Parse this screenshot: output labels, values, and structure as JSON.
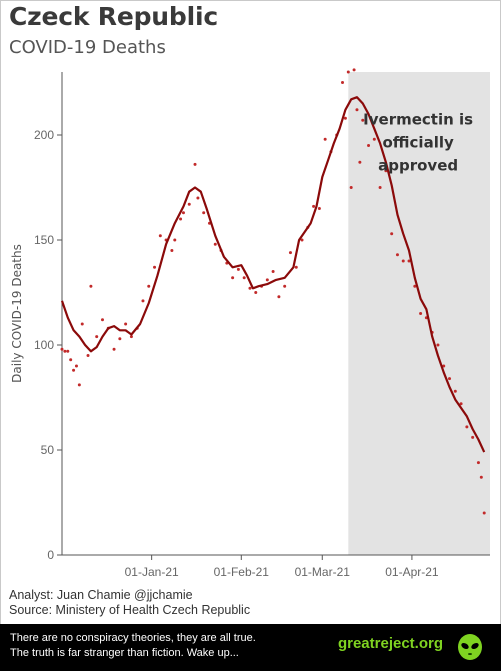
{
  "title": "Czeck Republic",
  "subtitle": "COVID-19 Deaths",
  "analyst": "Analyst: Juan Chamie @jjchamie",
  "source": "Source: Ministery of Health Czech Republic",
  "footer": {
    "line1": "There are no conspiracy theories, they are all true.",
    "line2": "The truth is far stranger than fiction. Wake up...",
    "site": "greatreject.org",
    "icon": "alien-icon"
  },
  "colors": {
    "line": "#8b0a0a",
    "points": "#c22a2a",
    "shade": "#e3e3e3",
    "axis": "#555555",
    "footer_bg": "#000000",
    "site": "#7fd321"
  },
  "chart_data": {
    "type": "line",
    "ylabel": "Daily COVID-19 Deaths",
    "xlabel": "",
    "ylim": [
      0,
      230
    ],
    "yticks": [
      0,
      50,
      100,
      150,
      200
    ],
    "xrange": [
      "2020-12-01",
      "2021-04-28"
    ],
    "xticks": [
      {
        "date": "2021-01-01",
        "label": "01-Jan-21"
      },
      {
        "date": "2021-02-01",
        "label": "01-Feb-21"
      },
      {
        "date": "2021-03-01",
        "label": "01-Mar-21"
      },
      {
        "date": "2021-04-01",
        "label": "01-Apr-21"
      }
    ],
    "shaded_region": {
      "start": "2021-03-10",
      "end": "2021-04-28"
    },
    "annotation": {
      "lines": [
        "Ivermectin is",
        "officially",
        "approved"
      ],
      "date": "2021-03-30",
      "y": 205
    },
    "series": [
      {
        "style": "line",
        "points": [
          [
            "2020-12-01",
            121
          ],
          [
            "2020-12-03",
            113
          ],
          [
            "2020-12-05",
            107
          ],
          [
            "2020-12-07",
            104
          ],
          [
            "2020-12-09",
            100
          ],
          [
            "2020-12-11",
            97
          ],
          [
            "2020-12-13",
            99
          ],
          [
            "2020-12-15",
            104
          ],
          [
            "2020-12-17",
            108
          ],
          [
            "2020-12-19",
            109
          ],
          [
            "2020-12-21",
            107
          ],
          [
            "2020-12-23",
            107
          ],
          [
            "2020-12-25",
            105
          ],
          [
            "2020-12-28",
            110
          ],
          [
            "2020-12-31",
            120
          ],
          [
            "2021-01-03",
            133
          ],
          [
            "2021-01-06",
            148
          ],
          [
            "2021-01-09",
            158
          ],
          [
            "2021-01-12",
            166
          ],
          [
            "2021-01-14",
            173
          ],
          [
            "2021-01-16",
            175
          ],
          [
            "2021-01-18",
            173
          ],
          [
            "2021-01-20",
            165
          ],
          [
            "2021-01-23",
            152
          ],
          [
            "2021-01-26",
            142
          ],
          [
            "2021-01-29",
            137
          ],
          [
            "2021-02-01",
            138
          ],
          [
            "2021-02-03",
            133
          ],
          [
            "2021-02-05",
            127
          ],
          [
            "2021-02-07",
            128
          ],
          [
            "2021-02-10",
            129
          ],
          [
            "2021-02-13",
            131
          ],
          [
            "2021-02-16",
            132
          ],
          [
            "2021-02-19",
            137
          ],
          [
            "2021-02-21",
            150
          ],
          [
            "2021-02-23",
            154
          ],
          [
            "2021-02-25",
            158
          ],
          [
            "2021-02-27",
            166
          ],
          [
            "2021-03-01",
            180
          ],
          [
            "2021-03-03",
            188
          ],
          [
            "2021-03-05",
            196
          ],
          [
            "2021-03-07",
            203
          ],
          [
            "2021-03-09",
            212
          ],
          [
            "2021-03-11",
            217
          ],
          [
            "2021-03-13",
            218
          ],
          [
            "2021-03-15",
            215
          ],
          [
            "2021-03-17",
            210
          ],
          [
            "2021-03-19",
            203
          ],
          [
            "2021-03-21",
            196
          ],
          [
            "2021-03-23",
            187
          ],
          [
            "2021-03-25",
            176
          ],
          [
            "2021-03-27",
            162
          ],
          [
            "2021-03-29",
            153
          ],
          [
            "2021-03-31",
            145
          ],
          [
            "2021-04-02",
            132
          ],
          [
            "2021-04-04",
            122
          ],
          [
            "2021-04-06",
            117
          ],
          [
            "2021-04-08",
            104
          ],
          [
            "2021-04-10",
            95
          ],
          [
            "2021-04-12",
            87
          ],
          [
            "2021-04-14",
            80
          ],
          [
            "2021-04-16",
            74
          ],
          [
            "2021-04-18",
            70
          ],
          [
            "2021-04-20",
            66
          ],
          [
            "2021-04-22",
            60
          ],
          [
            "2021-04-24",
            55
          ],
          [
            "2021-04-26",
            49
          ]
        ]
      },
      {
        "style": "points",
        "points": [
          [
            "2020-12-01",
            98
          ],
          [
            "2020-12-02",
            97
          ],
          [
            "2020-12-03",
            97
          ],
          [
            "2020-12-04",
            93
          ],
          [
            "2020-12-05",
            88
          ],
          [
            "2020-12-06",
            90
          ],
          [
            "2020-12-07",
            81
          ],
          [
            "2020-12-08",
            110
          ],
          [
            "2020-12-10",
            95
          ],
          [
            "2020-12-11",
            128
          ],
          [
            "2020-12-13",
            104
          ],
          [
            "2020-12-15",
            112
          ],
          [
            "2020-12-17",
            108
          ],
          [
            "2020-12-19",
            98
          ],
          [
            "2020-12-21",
            103
          ],
          [
            "2020-12-23",
            110
          ],
          [
            "2020-12-25",
            104
          ],
          [
            "2020-12-27",
            108
          ],
          [
            "2020-12-29",
            121
          ],
          [
            "2020-12-31",
            128
          ],
          [
            "2021-01-02",
            137
          ],
          [
            "2021-01-04",
            152
          ],
          [
            "2021-01-06",
            150
          ],
          [
            "2021-01-08",
            145
          ],
          [
            "2021-01-09",
            150
          ],
          [
            "2021-01-11",
            160
          ],
          [
            "2021-01-12",
            163
          ],
          [
            "2021-01-14",
            167
          ],
          [
            "2021-01-16",
            186
          ],
          [
            "2021-01-17",
            170
          ],
          [
            "2021-01-19",
            163
          ],
          [
            "2021-01-21",
            158
          ],
          [
            "2021-01-23",
            148
          ],
          [
            "2021-01-25",
            145
          ],
          [
            "2021-01-27",
            139
          ],
          [
            "2021-01-29",
            132
          ],
          [
            "2021-01-31",
            136
          ],
          [
            "2021-02-02",
            132
          ],
          [
            "2021-02-04",
            127
          ],
          [
            "2021-02-06",
            125
          ],
          [
            "2021-02-08",
            128
          ],
          [
            "2021-02-10",
            131
          ],
          [
            "2021-02-12",
            135
          ],
          [
            "2021-02-14",
            123
          ],
          [
            "2021-02-16",
            128
          ],
          [
            "2021-02-18",
            144
          ],
          [
            "2021-02-20",
            137
          ],
          [
            "2021-02-22",
            150
          ],
          [
            "2021-02-24",
            156
          ],
          [
            "2021-02-26",
            166
          ],
          [
            "2021-02-28",
            165
          ],
          [
            "2021-03-02",
            198
          ],
          [
            "2021-03-04",
            192
          ],
          [
            "2021-03-06",
            200
          ],
          [
            "2021-03-08",
            225
          ],
          [
            "2021-03-09",
            208
          ],
          [
            "2021-03-10",
            230
          ],
          [
            "2021-03-11",
            175
          ],
          [
            "2021-03-12",
            231
          ],
          [
            "2021-03-13",
            212
          ],
          [
            "2021-03-14",
            187
          ],
          [
            "2021-03-15",
            207
          ],
          [
            "2021-03-17",
            195
          ],
          [
            "2021-03-19",
            198
          ],
          [
            "2021-03-21",
            175
          ],
          [
            "2021-03-23",
            183
          ],
          [
            "2021-03-25",
            153
          ],
          [
            "2021-03-27",
            143
          ],
          [
            "2021-03-29",
            140
          ],
          [
            "2021-03-31",
            140
          ],
          [
            "2021-04-02",
            128
          ],
          [
            "2021-04-04",
            115
          ],
          [
            "2021-04-06",
            113
          ],
          [
            "2021-04-08",
            106
          ],
          [
            "2021-04-10",
            100
          ],
          [
            "2021-04-12",
            90
          ],
          [
            "2021-04-14",
            84
          ],
          [
            "2021-04-16",
            78
          ],
          [
            "2021-04-18",
            72
          ],
          [
            "2021-04-20",
            61
          ],
          [
            "2021-04-22",
            56
          ],
          [
            "2021-04-24",
            44
          ],
          [
            "2021-04-25",
            37
          ],
          [
            "2021-04-26",
            20
          ]
        ]
      }
    ]
  }
}
